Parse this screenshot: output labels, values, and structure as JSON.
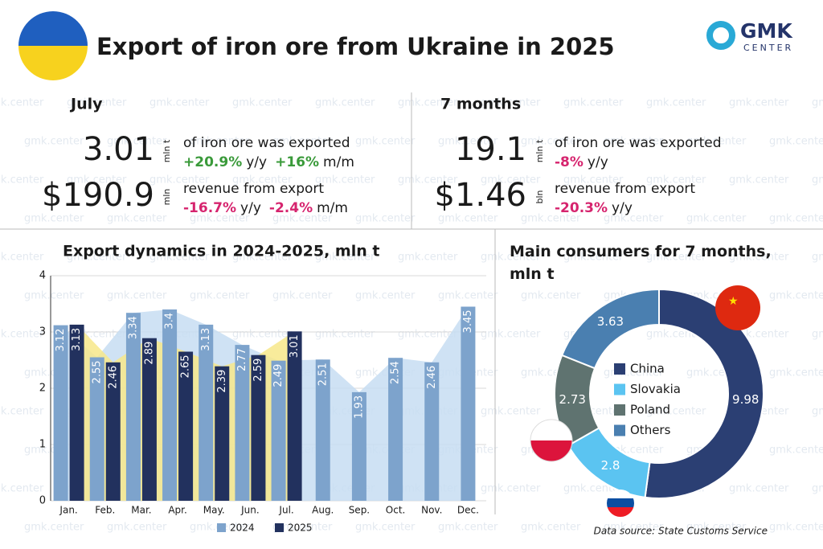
{
  "header": {
    "title": "Export of iron ore from Ukraine in 2025",
    "logo": "GMK",
    "logo_sub": "CENTER"
  },
  "watermark": "gmk.center",
  "kpis": [
    {
      "title": "July",
      "items": [
        {
          "value": "3.01",
          "unit": "mln t",
          "desc": "of iron ore was exported",
          "changes": [
            {
              "value": "+20.9%",
              "period": "y/y"
            },
            {
              "value": "+16%",
              "period": "m/m"
            }
          ]
        },
        {
          "value": "$190.9",
          "unit": "mln",
          "desc": "revenue from export",
          "changes": [
            {
              "value": "-16.7%",
              "period": "y/y"
            },
            {
              "value": "-2.4%",
              "period": "m/m"
            }
          ]
        }
      ]
    },
    {
      "title": "7 months",
      "items": [
        {
          "value": "19.1",
          "unit": "mln t",
          "desc": "of iron ore was exported",
          "changes": [
            {
              "value": "-8%",
              "period": "y/y"
            }
          ]
        },
        {
          "value": "$1.46",
          "unit": "bln",
          "desc": "revenue from export",
          "changes": [
            {
              "value": "-20.3%",
              "period": "y/y"
            }
          ]
        }
      ]
    }
  ],
  "chart_data": [
    {
      "type": "bar",
      "title": "Export dynamics in 2024-2025, mln t",
      "categories": [
        "Jan.",
        "Feb.",
        "Mar.",
        "Apr.",
        "May.",
        "Jun.",
        "Jul.",
        "Aug.",
        "Sep.",
        "Oct.",
        "Nov.",
        "Dec."
      ],
      "series": [
        {
          "name": "2024",
          "color": "#7da3cc",
          "area_color": "#c7ddf2",
          "values": [
            3.12,
            2.55,
            3.34,
            3.4,
            3.13,
            2.77,
            2.49,
            2.51,
            1.93,
            2.54,
            2.46,
            3.45
          ]
        },
        {
          "name": "2025",
          "color": "#22315e",
          "area_color": "#f7e88a",
          "values": [
            3.13,
            2.46,
            2.89,
            2.65,
            2.39,
            2.59,
            3.01,
            null,
            null,
            null,
            null,
            null
          ]
        }
      ],
      "ylim": [
        0,
        4
      ],
      "yticks": [
        0,
        1,
        2,
        3,
        4
      ],
      "grid": true,
      "legend": "bottom"
    },
    {
      "type": "pie",
      "title": "Main consumers for 7 months, mln t",
      "categories": [
        "China",
        "Slovakia",
        "Poland",
        "Others"
      ],
      "values": [
        9.98,
        2.8,
        2.73,
        3.63
      ],
      "colors": [
        "#2b3f73",
        "#5bc4f1",
        "#5f7370",
        "#4a7fb0"
      ],
      "donut": true,
      "legend": "center"
    }
  ],
  "source": "Data source: State Customs Service"
}
